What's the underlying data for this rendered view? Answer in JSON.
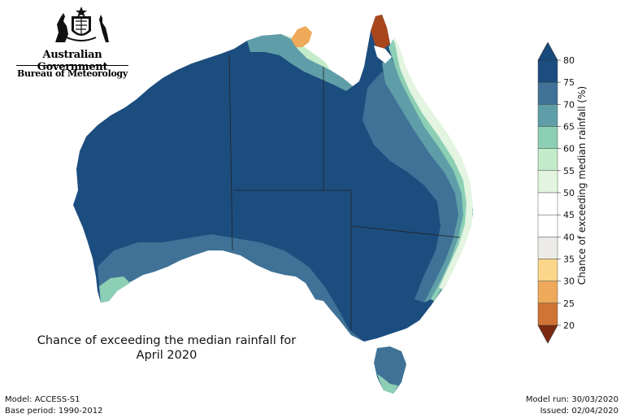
{
  "header": {
    "government": "Australian Government",
    "bureau": "Bureau of Meteorology"
  },
  "title_line1": "Chance of exceeding the median rainfall for",
  "title_line2": "April 2020",
  "footer_left": {
    "model": "Model: ACCESS-S1",
    "base_period": "Base period: 1990-2012"
  },
  "footer_right": {
    "model_run": "Model run: 30/03/2020",
    "issued": "Issued: 02/04/2020"
  },
  "legend": {
    "title": "Chance of exceeding median rainfall (%)",
    "ticks": [
      "80",
      "75",
      "70",
      "65",
      "60",
      "55",
      "50",
      "45",
      "40",
      "35",
      "30",
      "25",
      "20"
    ],
    "colors": [
      "#7b2a10",
      "#a8461c",
      "#cf7434",
      "#eea95a",
      "#fbd68a",
      "#ecebe7",
      "#ffffff",
      "#ffffff",
      "#e3f4e1",
      "#c4ebc9",
      "#8dcfb5",
      "#5f9ea8",
      "#3f7296",
      "#1c4d7f",
      "#184a7d"
    ]
  }
}
